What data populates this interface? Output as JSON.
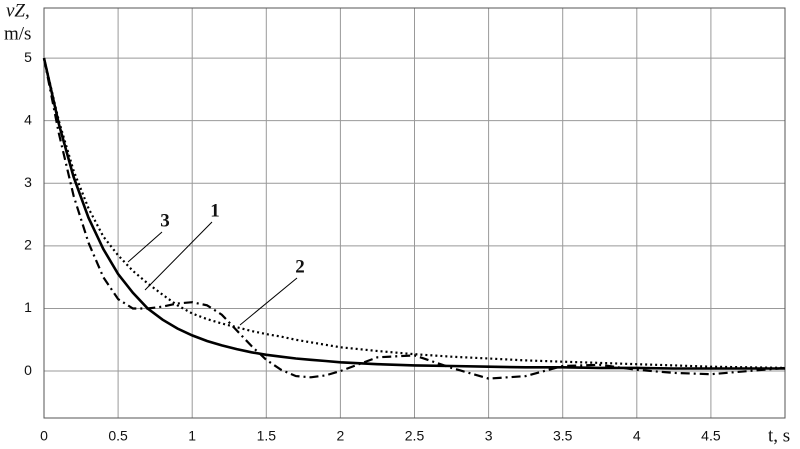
{
  "chart_data": {
    "type": "line",
    "y_label": [
      "vZ,",
      "m/s"
    ],
    "x_label": "t, s",
    "x": [
      0,
      0.1,
      0.2,
      0.3,
      0.4,
      0.5,
      0.6,
      0.7,
      0.8,
      0.9,
      1.0,
      1.1,
      1.2,
      1.3,
      1.4,
      1.5,
      1.6,
      1.7,
      1.8,
      1.9,
      2.0,
      2.25,
      2.5,
      2.75,
      3,
      3.25,
      3.5,
      3.75,
      4,
      4.25,
      4.5,
      4.75,
      5
    ],
    "series": [
      {
        "name": "1",
        "color": "#000000",
        "dash": "solid",
        "values": [
          5.0,
          3.95,
          3.1,
          2.45,
          1.95,
          1.55,
          1.25,
          1.0,
          0.82,
          0.68,
          0.57,
          0.48,
          0.41,
          0.35,
          0.3,
          0.26,
          0.23,
          0.2,
          0.18,
          0.16,
          0.14,
          0.11,
          0.09,
          0.08,
          0.07,
          0.06,
          0.06,
          0.05,
          0.05,
          0.04,
          0.04,
          0.04,
          0.04
        ]
      },
      {
        "name": "2",
        "color": "#000000",
        "dash": "dashdot",
        "values": [
          5.0,
          3.8,
          2.8,
          2.05,
          1.5,
          1.15,
          1.0,
          1.0,
          1.03,
          1.08,
          1.1,
          1.05,
          0.9,
          0.65,
          0.4,
          0.18,
          0.02,
          -0.08,
          -0.1,
          -0.07,
          0.0,
          0.22,
          0.25,
          0.05,
          -0.12,
          -0.08,
          0.08,
          0.1,
          0.02,
          -0.03,
          -0.05,
          0.0,
          0.05
        ]
      },
      {
        "name": "3",
        "color": "#000000",
        "dash": "dotted",
        "values": [
          5.0,
          4.0,
          3.2,
          2.6,
          2.15,
          1.85,
          1.6,
          1.4,
          1.22,
          1.05,
          0.92,
          0.83,
          0.76,
          0.7,
          0.64,
          0.59,
          0.55,
          0.5,
          0.46,
          0.42,
          0.38,
          0.32,
          0.27,
          0.23,
          0.2,
          0.17,
          0.15,
          0.13,
          0.11,
          0.09,
          0.07,
          0.06,
          0.05
        ]
      }
    ],
    "xlim": [
      0,
      5
    ],
    "xticks": [
      0,
      0.5,
      1,
      1.5,
      2,
      2.5,
      3,
      3.5,
      4,
      4.5
    ],
    "ylim": [
      -0.75,
      5.8
    ],
    "yticks": [
      0,
      1,
      2,
      3,
      4,
      5
    ],
    "grid": true
  }
}
